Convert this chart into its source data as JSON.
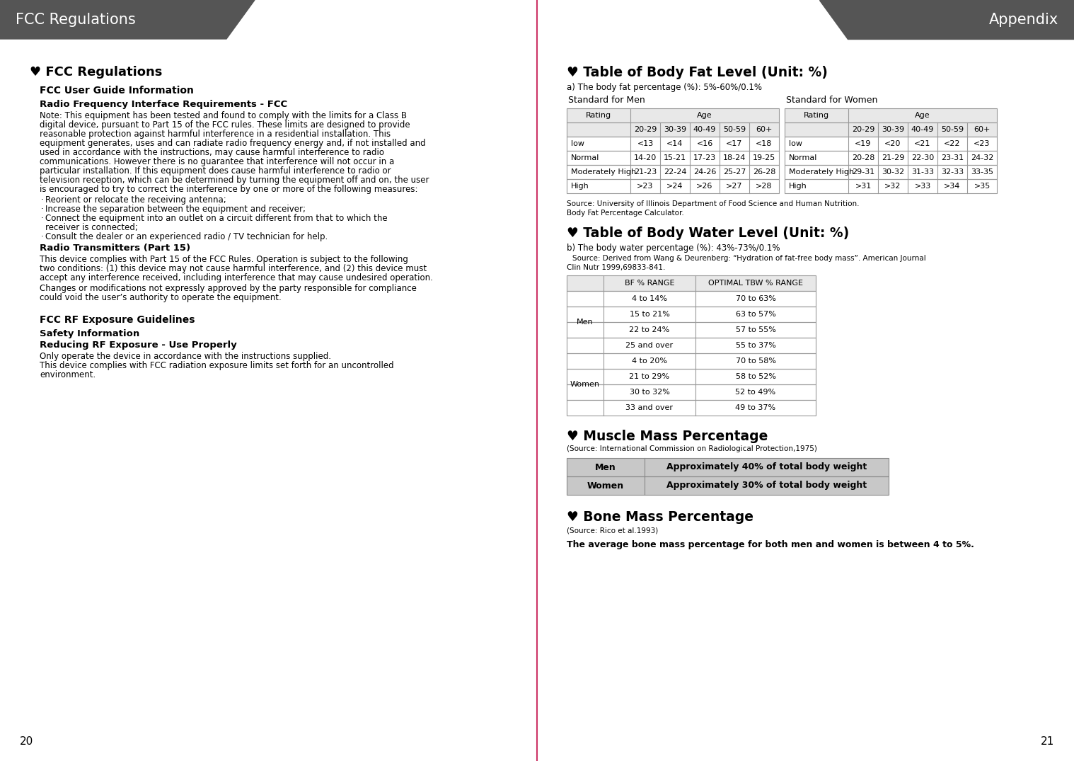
{
  "bg_color": "#ffffff",
  "header_bg": "#555555",
  "header_text_color": "#ffffff",
  "divider_color": "#cc3366",
  "left_page_num": "20",
  "right_page_num": "21",
  "left_header": "FCC Regulations",
  "right_header": "Appendix",
  "right_content_sections": [
    {
      "title": "♥ Table of Body Fat Level (Unit: %)",
      "subtitle": "a) The body fat percentage (%): 5%-60%/0.1%",
      "men_label": "Standard for Men",
      "women_label": "Standard for Women",
      "men_table": {
        "rows": [
          [
            "low",
            "<13",
            "<14",
            "<16",
            "<17",
            "<18"
          ],
          [
            "Normal",
            "14-20",
            "15-21",
            "17-23",
            "18-24",
            "19-25"
          ],
          [
            "Moderately High",
            "21-23",
            "22-24",
            "24-26",
            "25-27",
            "26-28"
          ],
          [
            "High",
            ">23",
            ">24",
            ">26",
            ">27",
            ">28"
          ]
        ]
      },
      "women_table": {
        "rows": [
          [
            "low",
            "<19",
            "<20",
            "<21",
            "<22",
            "<23"
          ],
          [
            "Normal",
            "20-28",
            "21-29",
            "22-30",
            "23-31",
            "24-32"
          ],
          [
            "Moderately High",
            "29-31",
            "30-32",
            "31-33",
            "32-33",
            "33-35"
          ],
          [
            "High",
            ">31",
            ">32",
            ">33",
            ">34",
            ">35"
          ]
        ]
      },
      "source_line1": "Source: University of Illinois Department of Food Science and Human Nutrition.",
      "source_line2": "Body Fat Percentage Calculator."
    },
    {
      "title": "♥ Table of Body Water Level (Unit: %)",
      "subtitle": "b) The body water percentage (%): 43%-73%/0.1%",
      "source": "   Source: Derived from Wang & Deurenberg: “Hydration of fat-free body mass”. American Journal\nClin Nutr 1999,69833-841.",
      "water_table": {
        "rows": [
          [
            "Men",
            "4 to 14%",
            "70 to 63%"
          ],
          [
            "",
            "15 to 21%",
            "63 to 57%"
          ],
          [
            "",
            "22 to 24%",
            "57 to 55%"
          ],
          [
            "",
            "25 and over",
            "55 to 37%"
          ],
          [
            "Women",
            "4 to 20%",
            "70 to 58%"
          ],
          [
            "",
            "21 to 29%",
            "58 to 52%"
          ],
          [
            "",
            "30 to 32%",
            "52 to 49%"
          ],
          [
            "",
            "33 and over",
            "49 to 37%"
          ]
        ]
      }
    },
    {
      "title": "♥ Muscle Mass Percentage",
      "subtitle": "(Source: International Commission on Radiological Protection,1975)",
      "muscle_table": {
        "rows": [
          [
            "Men",
            "Approximately 40% of total body weight"
          ],
          [
            "Women",
            "Approximately 30% of total body weight"
          ]
        ]
      }
    },
    {
      "title": "♥ Bone Mass Percentage",
      "subtitle": "(Source: Rico et al.1993)",
      "text": "The average bone mass percentage for both men and women is between 4 to 5%."
    }
  ],
  "table_border_color": "#999999",
  "table_header_bg": "#e8e8e8",
  "muscle_table_bg": "#c8c8c8"
}
